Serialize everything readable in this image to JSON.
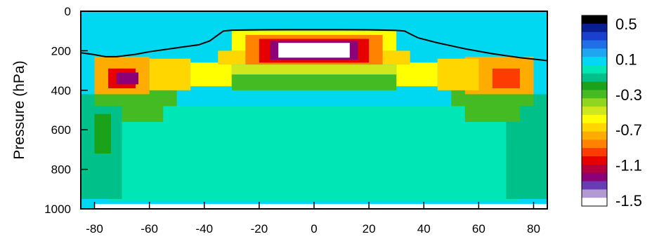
{
  "chart_data": {
    "type": "heatmap",
    "title": "",
    "xlabel": "",
    "ylabel": "Pressure (hPa)",
    "xlim": [
      -85,
      85
    ],
    "ylim": [
      1000,
      0
    ],
    "x_ticks": [
      -80,
      -60,
      -40,
      -20,
      0,
      20,
      40,
      60,
      80
    ],
    "y_ticks": [
      0,
      200,
      400,
      600,
      800,
      1000
    ],
    "colorbar": {
      "levels": [
        0.5,
        0.4,
        0.3,
        0.2,
        0.1,
        0.0,
        -0.1,
        -0.2,
        -0.3,
        -0.4,
        -0.5,
        -0.6,
        -0.7,
        -0.8,
        -0.9,
        -1.0,
        -1.1,
        -1.2,
        -1.3,
        -1.4,
        -1.5
      ],
      "colors": [
        "#000000",
        "#0a1f8f",
        "#1b3fcf",
        "#1f6fe6",
        "#1fa6f0",
        "#00d8f2",
        "#00e6b4",
        "#00c08a",
        "#1aa21a",
        "#44bb22",
        "#8fd61e",
        "#cfe81e",
        "#ffff00",
        "#ffd600",
        "#ffac00",
        "#ff8200",
        "#ff3c00",
        "#e60000",
        "#b4003c",
        "#8c0078",
        "#6a3cb4",
        "#b49ad2",
        "#ffffff"
      ],
      "labels": [
        "0.5",
        "0.1",
        "-0.3",
        "-0.7",
        "-1.1",
        "-1.5"
      ]
    },
    "tropopause_line": {
      "lat": [
        -85,
        -80,
        -76,
        -72,
        -65,
        -60,
        -50,
        -42,
        -38,
        -35,
        -33,
        -30,
        -20,
        -10,
        0,
        10,
        20,
        30,
        33,
        35,
        38,
        45,
        55,
        65,
        75,
        85
      ],
      "pressure": [
        210,
        220,
        230,
        230,
        218,
        205,
        185,
        170,
        150,
        120,
        100,
        96,
        94,
        93,
        93,
        93,
        94,
        97,
        100,
        115,
        135,
        160,
        190,
        215,
        235,
        250
      ]
    },
    "field_regions": [
      {
        "x0": -85,
        "x1": 85,
        "y0": 0,
        "y1": 1000,
        "value": 0.02
      },
      {
        "x0": -70,
        "x1": 70,
        "y0": 480,
        "y1": 900,
        "value": 0.1
      },
      {
        "x0": -75,
        "x1": 75,
        "y0": 650,
        "y1": 960,
        "value": 0.1
      },
      {
        "x0": -85,
        "x1": -70,
        "y0": 420,
        "y1": 950,
        "value": -0.1
      },
      {
        "x0": 70,
        "x1": 85,
        "y0": 420,
        "y1": 950,
        "value": -0.1
      },
      {
        "x0": -80,
        "x1": -74,
        "y0": 520,
        "y1": 720,
        "value": -0.2
      },
      {
        "x0": -70,
        "x1": -55,
        "y0": 470,
        "y1": 560,
        "value": -0.3
      },
      {
        "x0": 55,
        "x1": 75,
        "y0": 470,
        "y1": 560,
        "value": -0.3
      },
      {
        "x0": -80,
        "x1": -50,
        "y0": 400,
        "y1": 480,
        "value": -0.3
      },
      {
        "x0": 50,
        "x1": 80,
        "y0": 400,
        "y1": 480,
        "value": -0.3
      },
      {
        "x0": -80,
        "x1": -60,
        "y0": 230,
        "y1": 420,
        "value": -0.8
      },
      {
        "x0": 55,
        "x1": 80,
        "y0": 230,
        "y1": 420,
        "value": -0.8
      },
      {
        "x0": -60,
        "x1": -45,
        "y0": 240,
        "y1": 400,
        "value": -0.7
      },
      {
        "x0": 45,
        "x1": 60,
        "y0": 240,
        "y1": 400,
        "value": -0.7
      },
      {
        "x0": -45,
        "x1": -30,
        "y0": 260,
        "y1": 380,
        "value": -0.6
      },
      {
        "x0": 30,
        "x1": 45,
        "y0": 260,
        "y1": 380,
        "value": -0.6
      },
      {
        "x0": -30,
        "x1": 30,
        "y0": 320,
        "y1": 400,
        "value": -0.3
      },
      {
        "x0": -30,
        "x1": 30,
        "y0": 270,
        "y1": 320,
        "value": -0.5
      },
      {
        "x0": -35,
        "x1": 35,
        "y0": 200,
        "y1": 270,
        "value": -0.7
      },
      {
        "x0": -30,
        "x1": 30,
        "y0": 100,
        "y1": 200,
        "value": -0.6
      },
      {
        "x0": -25,
        "x1": 25,
        "y0": 120,
        "y1": 270,
        "value": -0.9
      },
      {
        "x0": -20,
        "x1": 20,
        "y0": 140,
        "y1": 260,
        "value": -1.1
      },
      {
        "x0": -16,
        "x1": 16,
        "y0": 150,
        "y1": 245,
        "value": -1.3
      },
      {
        "x0": -13,
        "x1": 13,
        "y0": 160,
        "y1": 235,
        "value": -1.6
      },
      {
        "x0": -75,
        "x1": -65,
        "y0": 290,
        "y1": 390,
        "value": -1.1
      },
      {
        "x0": -72,
        "x1": -64,
        "y0": 310,
        "y1": 370,
        "value": -1.3
      },
      {
        "x0": 65,
        "x1": 75,
        "y0": 290,
        "y1": 390,
        "value": -1.0
      }
    ]
  }
}
